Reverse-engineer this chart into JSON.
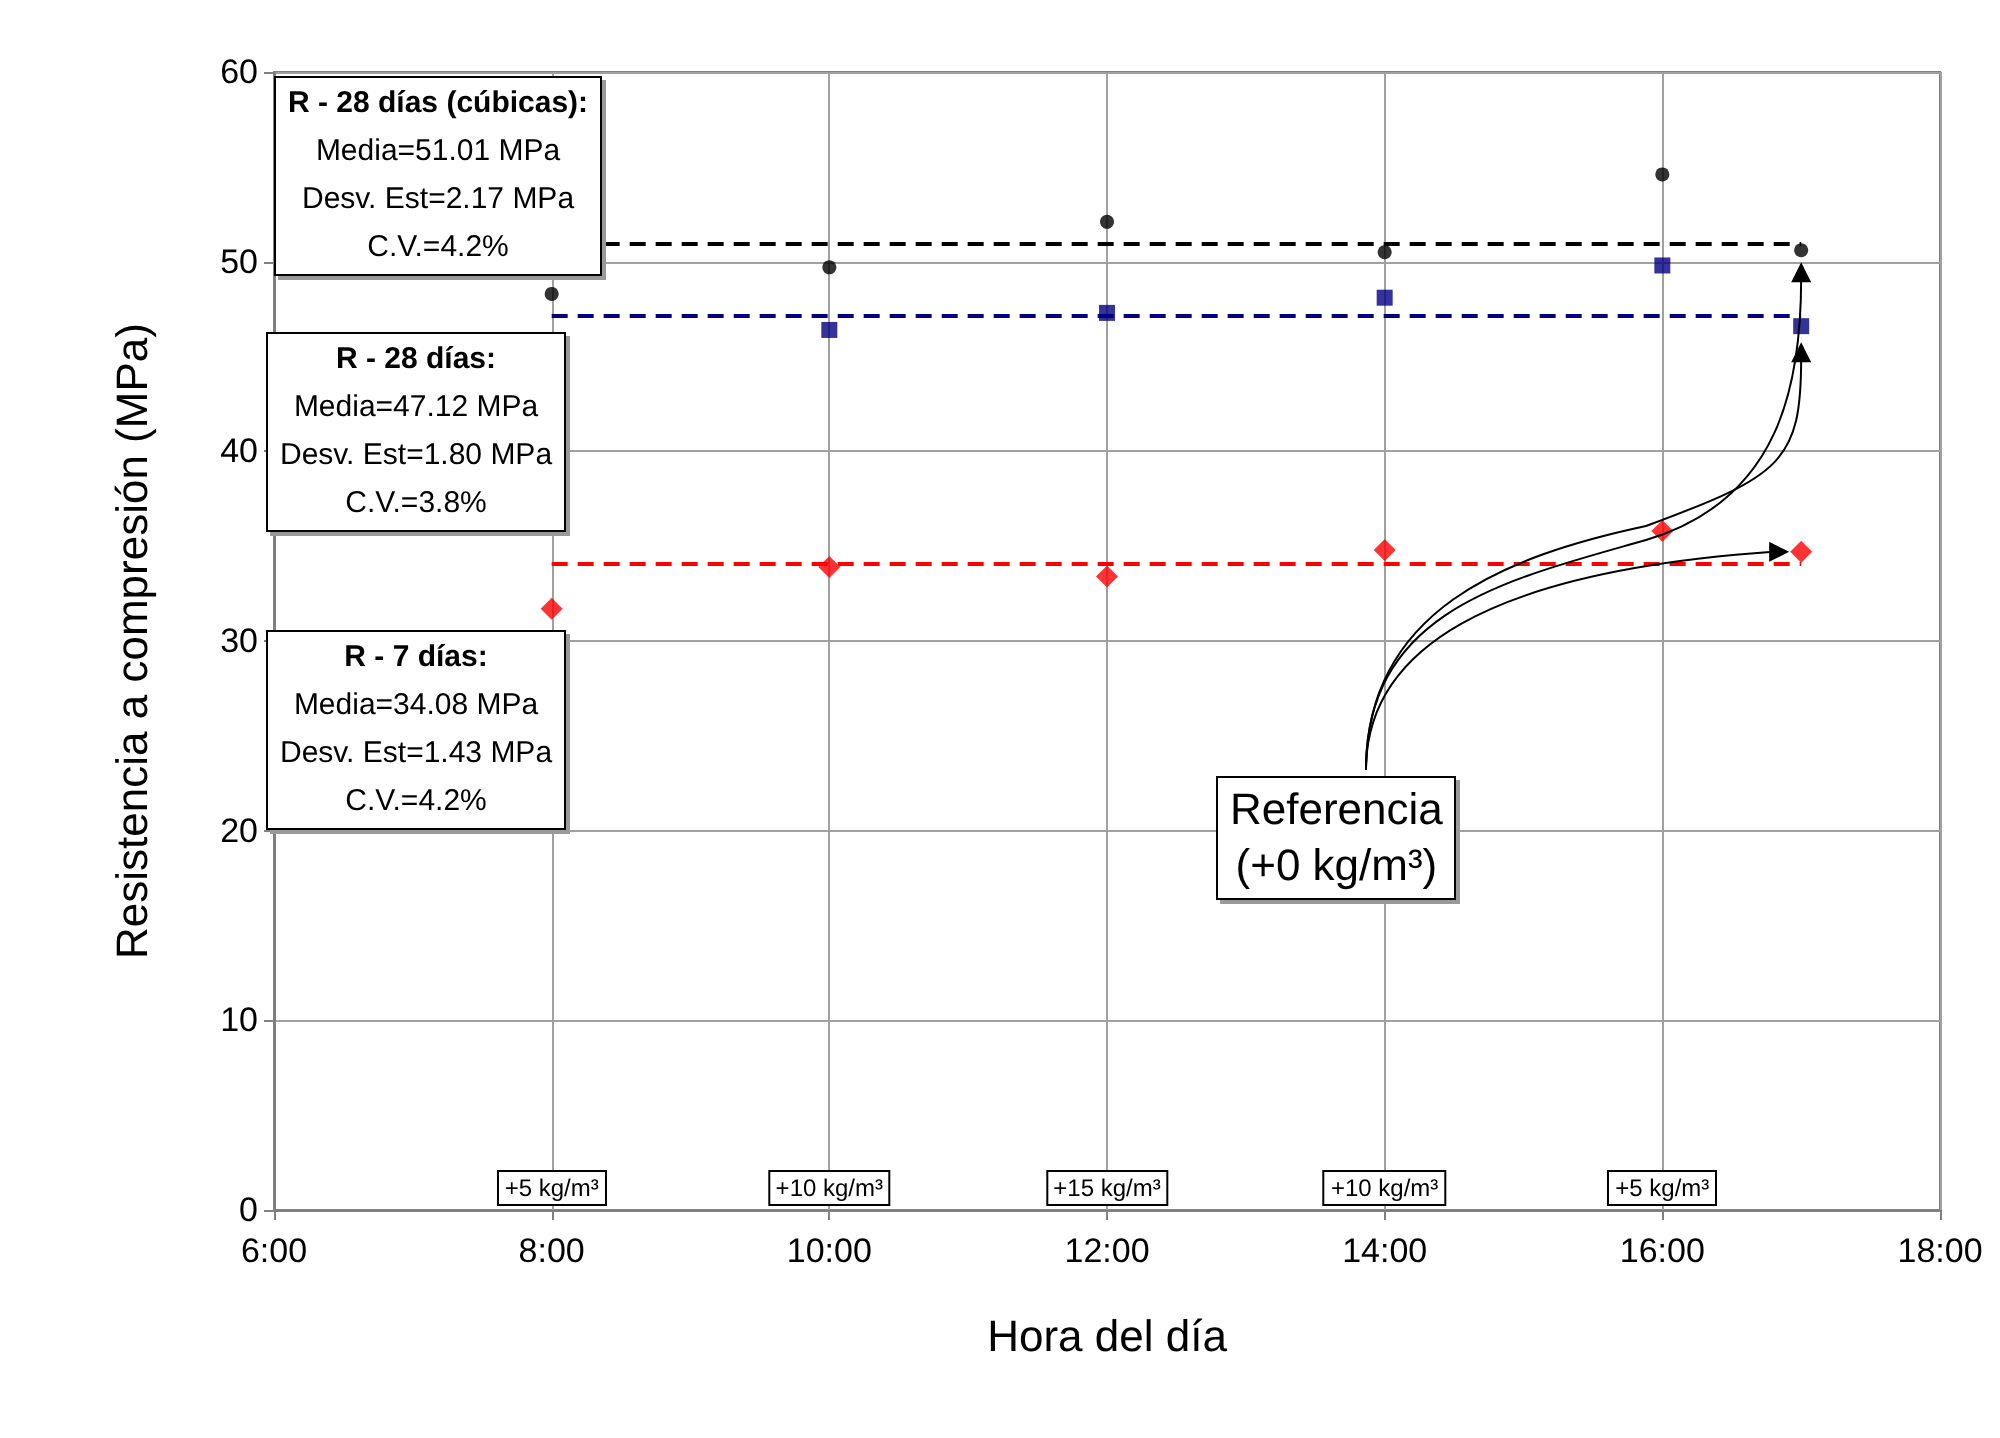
{
  "chart_data": {
    "type": "scatter",
    "xlabel": "Hora del día",
    "ylabel": "Resistencia a compresión (MPa)",
    "x": [
      8,
      10,
      12,
      14,
      16,
      17
    ],
    "series": [
      {
        "color": "#000000",
        "marker": "circle",
        "values": [
          48.3,
          49.7,
          52.1,
          50.5,
          54.6,
          50.6
        ]
      },
      {
        "color": "#000080",
        "marker": "square",
        "values": [
          null,
          46.4,
          47.3,
          48.1,
          49.8,
          46.6
        ]
      },
      {
        "color": "#ff0000",
        "marker": "diamond",
        "values": [
          31.7,
          33.9,
          33.4,
          34.8,
          35.8,
          34.7
        ]
      }
    ],
    "xlim": [
      6,
      18
    ],
    "xticks": [
      {
        "value": 6,
        "label": "6:00"
      },
      {
        "value": 8,
        "label": "8:00"
      },
      {
        "value": 10,
        "label": "10:00"
      },
      {
        "value": 12,
        "label": "12:00"
      },
      {
        "value": 14,
        "label": "14:00"
      },
      {
        "value": 16,
        "label": "16:00"
      },
      {
        "value": 18,
        "label": "18:00"
      }
    ],
    "ylim": [
      0,
      60
    ],
    "yticks": [
      0,
      10,
      20,
      30,
      40,
      50,
      60
    ],
    "grid": true,
    "ref_lines": [
      {
        "axis": "y",
        "value": 51.01,
        "color": "#000000",
        "line_style": "dashed"
      },
      {
        "axis": "y",
        "value": 47.12,
        "color": "#000080",
        "line_style": "dashed"
      },
      {
        "axis": "y",
        "value": 34.08,
        "color": "#ff0000",
        "line_style": "dashed"
      }
    ],
    "annotations": [
      "R - 28 días (cúbicas):\nMedia=51.01 MPa\nDesv. Est=2.17 MPa\nC.V.=4.2%",
      "R - 28 días:\nMedia=47.12 MPa\nDesv. Est=1.80 MPa\nC.V.=3.8%",
      "R - 7 días:\nMedia=34.08 MPa\nDesv. Est=1.43 MPa\nC.V.=4.2%",
      "Referencia\n(+0 kg/m³)",
      "+5 kg/m³",
      "+10 kg/m³",
      "+15 kg/m³",
      "+10 kg/m³",
      "+5 kg/m³"
    ]
  }
}
